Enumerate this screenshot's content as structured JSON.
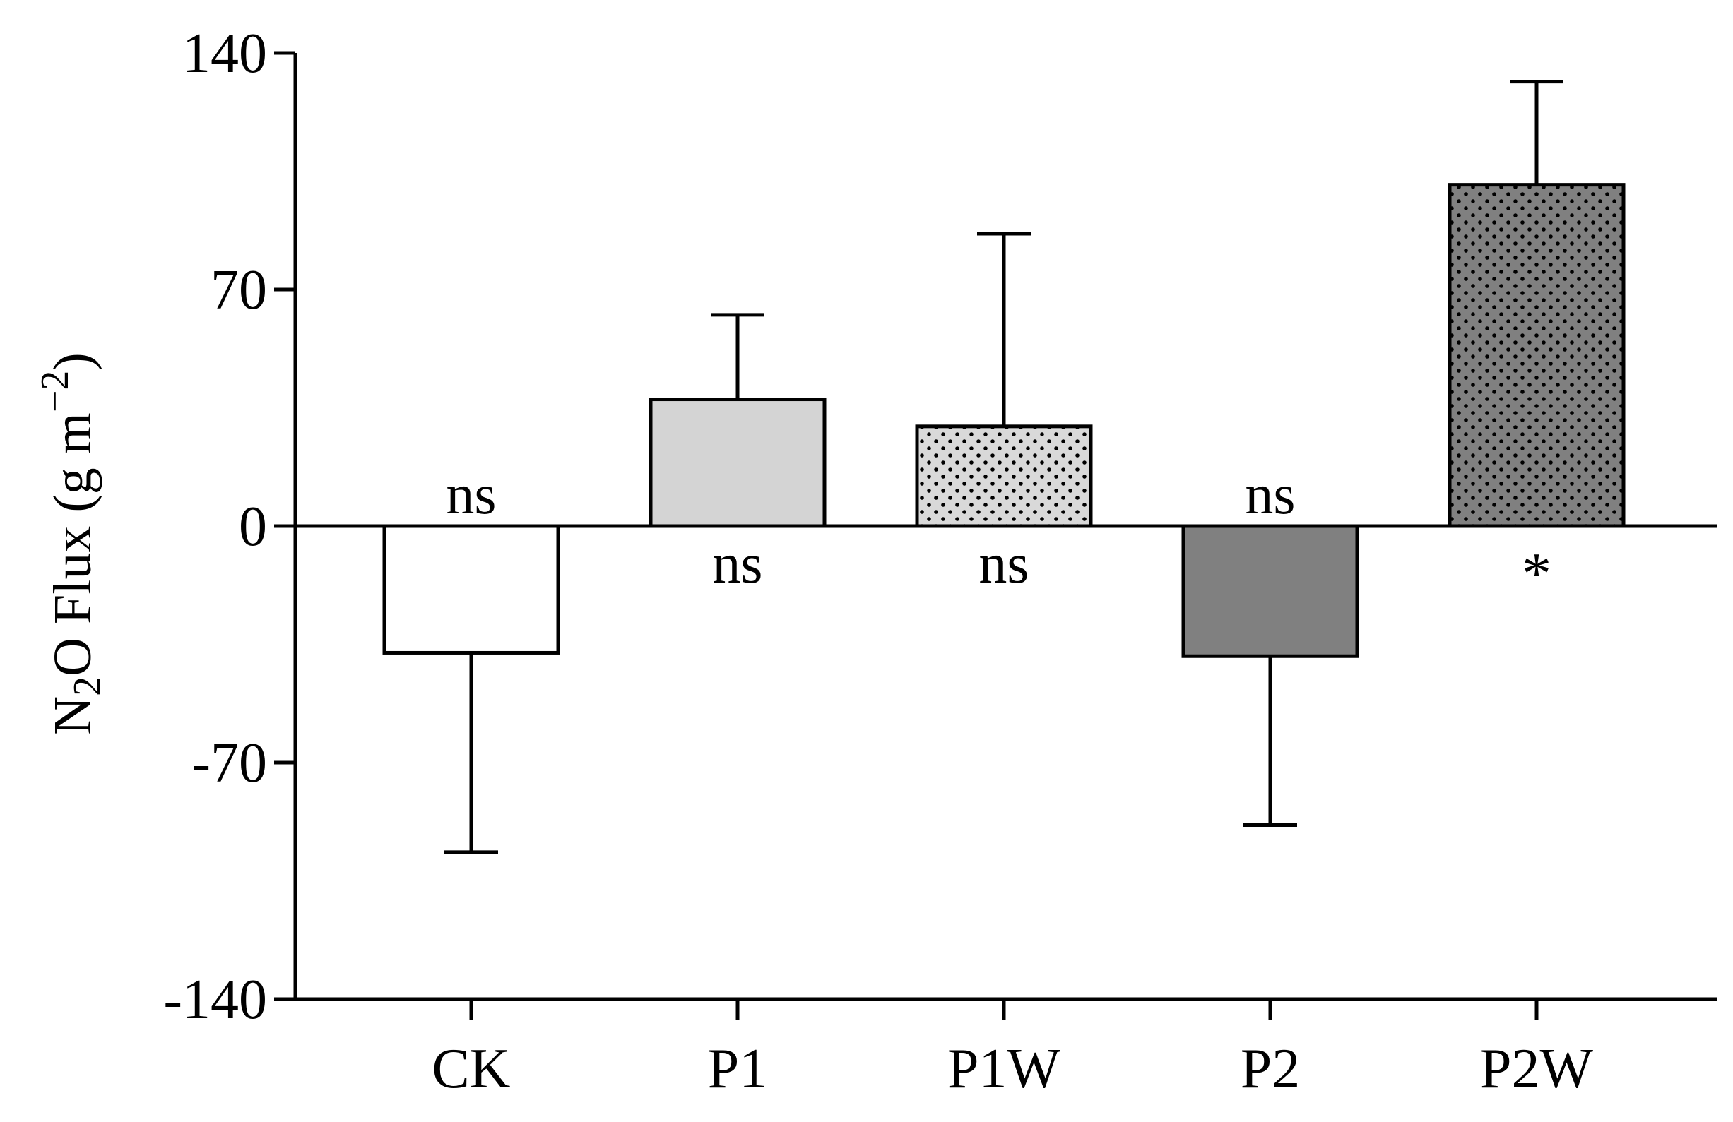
{
  "chart_data": {
    "type": "bar",
    "title": "",
    "xlabel": "",
    "ylabel_parts": {
      "prefix": "N",
      "subscript": "2",
      "middle": "O Flux (g m",
      "superscript": "−2",
      "suffix": ")"
    },
    "ylim": [
      -140,
      140
    ],
    "yticks": [
      {
        "value": 140,
        "label": "140"
      },
      {
        "value": 70,
        "label": "70"
      },
      {
        "value": 0,
        "label": "0"
      },
      {
        "value": -70,
        "label": "-70"
      },
      {
        "value": -140,
        "label": "-140"
      }
    ],
    "categories": [
      "CK",
      "P1",
      "P1W",
      "P2",
      "P2W"
    ],
    "values": [
      -37.5,
      37.5,
      29.5,
      -38.5,
      101
    ],
    "error_bars": [
      59,
      25,
      57,
      50,
      30.5
    ],
    "significance": [
      {
        "label": "ns",
        "position": "above-axis"
      },
      {
        "label": "ns",
        "position": "below-axis"
      },
      {
        "label": "ns",
        "position": "below-axis"
      },
      {
        "label": "ns",
        "position": "above-axis"
      },
      {
        "label": "*",
        "position": "below-axis"
      }
    ],
    "bar_styles": [
      {
        "fill": "#ffffff",
        "pattern": "none"
      },
      {
        "fill": "#d4d4d4",
        "pattern": "none"
      },
      {
        "fill": "#d9d9d9",
        "pattern": "dots"
      },
      {
        "fill": "#808080",
        "pattern": "none"
      },
      {
        "fill": "#808080",
        "pattern": "dots"
      }
    ],
    "grid": false,
    "legend": "none"
  }
}
